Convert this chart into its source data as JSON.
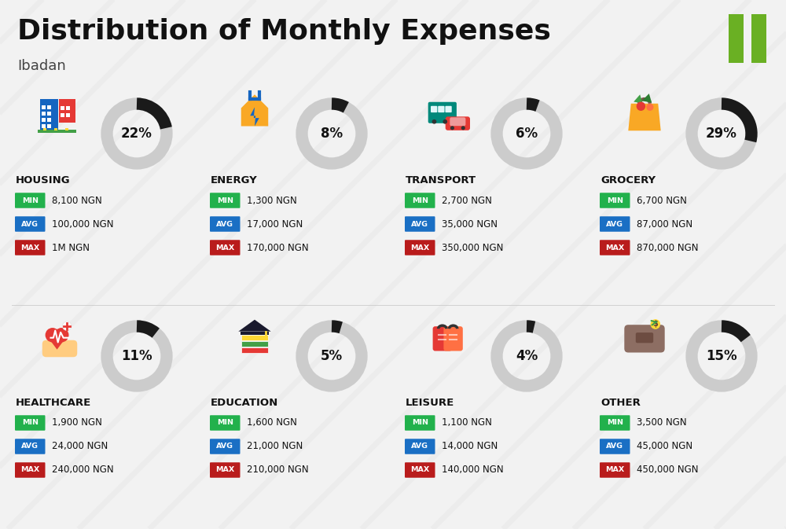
{
  "title": "Distribution of Monthly Expenses",
  "subtitle": "Ibadan",
  "background_color": "#f2f2f2",
  "title_color": "#111111",
  "subtitle_color": "#444444",
  "green_color": "#22b14c",
  "blue_color": "#1a6fc4",
  "red_color": "#b91c1c",
  "dark_color": "#111111",
  "gray_ring": "#cccccc",
  "black_ring": "#1a1a1a",
  "nigeria_green": "#6ab023",
  "categories": [
    {
      "name": "HOUSING",
      "pct": 22,
      "min": "8,100 NGN",
      "avg": "100,000 NGN",
      "max": "1M NGN",
      "row": 0,
      "col": 0,
      "icon_type": "housing"
    },
    {
      "name": "ENERGY",
      "pct": 8,
      "min": "1,300 NGN",
      "avg": "17,000 NGN",
      "max": "170,000 NGN",
      "row": 0,
      "col": 1,
      "icon_type": "energy"
    },
    {
      "name": "TRANSPORT",
      "pct": 6,
      "min": "2,700 NGN",
      "avg": "35,000 NGN",
      "max": "350,000 NGN",
      "row": 0,
      "col": 2,
      "icon_type": "transport"
    },
    {
      "name": "GROCERY",
      "pct": 29,
      "min": "6,700 NGN",
      "avg": "87,000 NGN",
      "max": "870,000 NGN",
      "row": 0,
      "col": 3,
      "icon_type": "grocery"
    },
    {
      "name": "HEALTHCARE",
      "pct": 11,
      "min": "1,900 NGN",
      "avg": "24,000 NGN",
      "max": "240,000 NGN",
      "row": 1,
      "col": 0,
      "icon_type": "healthcare"
    },
    {
      "name": "EDUCATION",
      "pct": 5,
      "min": "1,600 NGN",
      "avg": "21,000 NGN",
      "max": "210,000 NGN",
      "row": 1,
      "col": 1,
      "icon_type": "education"
    },
    {
      "name": "LEISURE",
      "pct": 4,
      "min": "1,100 NGN",
      "avg": "14,000 NGN",
      "max": "140,000 NGN",
      "row": 1,
      "col": 2,
      "icon_type": "leisure"
    },
    {
      "name": "OTHER",
      "pct": 15,
      "min": "3,500 NGN",
      "avg": "45,000 NGN",
      "max": "450,000 NGN",
      "row": 1,
      "col": 3,
      "icon_type": "other"
    }
  ]
}
